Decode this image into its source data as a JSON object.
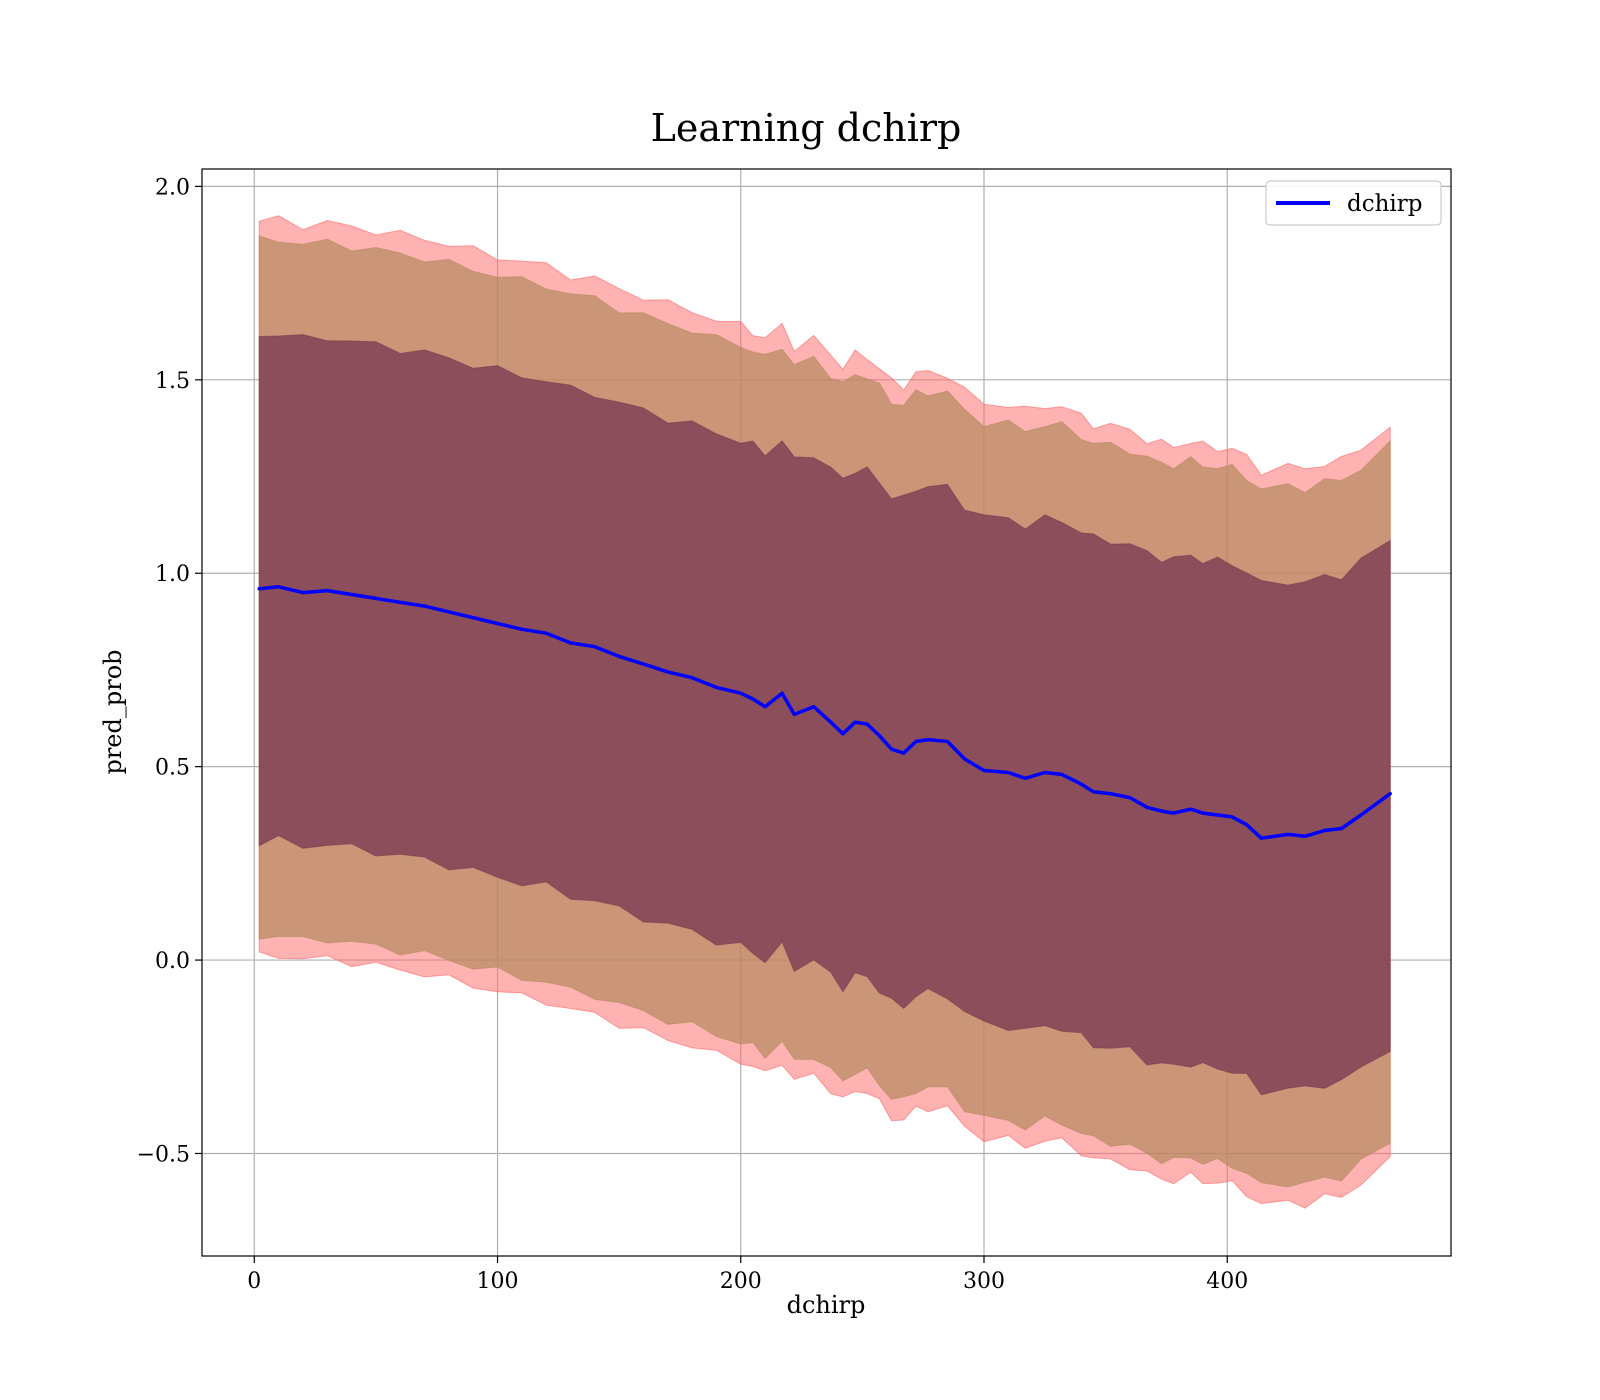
{
  "chart_data": {
    "type": "line",
    "title": "Learning dchirp",
    "xlabel": "dchirp",
    "ylabel": "pred_prob",
    "xlim": [
      -21.5,
      492
    ],
    "ylim": [
      -0.765,
      2.045
    ],
    "xticks": [
      0,
      100,
      200,
      300,
      400
    ],
    "yticks": [
      -0.5,
      0.0,
      0.5,
      1.0,
      1.5,
      2.0
    ],
    "xtick_labels": [
      "0",
      "100",
      "200",
      "300",
      "400"
    ],
    "ytick_labels": [
      "−0.5",
      "0.0",
      "0.5",
      "1.0",
      "1.5",
      "2.0"
    ],
    "grid": true,
    "legend": {
      "position": "top-right",
      "entries": [
        "dchirp"
      ]
    },
    "colors": {
      "line": "#0000ff",
      "outer_band": "#ff6666",
      "middle_band": "#b58a60",
      "inner_band": "#7a3a52"
    },
    "series": [
      {
        "name": "dchirp",
        "x": [
          2,
          10,
          20,
          30,
          40,
          50,
          60,
          70,
          80,
          90,
          100,
          110,
          120,
          130,
          140,
          150,
          160,
          170,
          180,
          190,
          200,
          205,
          210,
          217,
          222,
          230,
          237,
          242,
          247,
          252,
          257,
          262,
          267,
          272,
          277,
          285,
          292,
          300,
          310,
          317,
          325,
          332,
          340,
          345,
          352,
          360,
          367,
          373,
          378,
          385,
          390,
          396,
          402,
          408,
          414,
          425,
          432,
          440,
          447,
          455,
          467
        ],
        "values": [
          0.96,
          0.965,
          0.95,
          0.955,
          0.945,
          0.935,
          0.925,
          0.915,
          0.9,
          0.885,
          0.87,
          0.855,
          0.845,
          0.82,
          0.81,
          0.785,
          0.765,
          0.745,
          0.73,
          0.705,
          0.69,
          0.675,
          0.655,
          0.69,
          0.635,
          0.655,
          0.615,
          0.585,
          0.615,
          0.61,
          0.58,
          0.545,
          0.535,
          0.565,
          0.57,
          0.565,
          0.52,
          0.49,
          0.485,
          0.47,
          0.485,
          0.48,
          0.455,
          0.435,
          0.43,
          0.42,
          0.395,
          0.385,
          0.38,
          0.39,
          0.38,
          0.375,
          0.37,
          0.35,
          0.315,
          0.325,
          0.32,
          0.335,
          0.34,
          0.375,
          0.43
        ],
        "bands": [
          {
            "name": "",
            "half_width": 0.655
          },
          {
            "name": "",
            "half_width": 0.9
          },
          {
            "name": "",
            "half_width": 0.95
          }
        ]
      }
    ]
  }
}
